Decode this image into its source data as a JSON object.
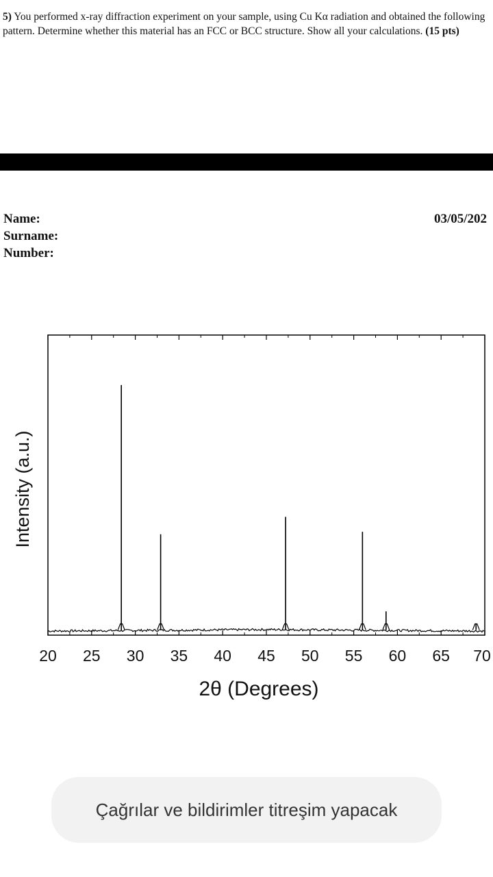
{
  "question": {
    "number": "5)",
    "body": " You performed x-ray diffraction experiment on your sample, using Cu Kα radiation and obtained the following pattern. Determine whether this material has an FCC or BCC structure. Show all your calculations. ",
    "points": "(15 pts)"
  },
  "fields": {
    "name": "Name:",
    "surname": "Surname:",
    "number": "Number:",
    "date": "03/05/202"
  },
  "chart_data": {
    "type": "line",
    "xlabel": "2θ (Degrees)",
    "ylabel": "Intensity (a.u.)",
    "xlim": [
      20,
      70
    ],
    "ylim": [
      0,
      100
    ],
    "xticks": [
      "20",
      "25",
      "30",
      "35",
      "40",
      "45",
      "50",
      "55",
      "60",
      "65",
      "70"
    ],
    "grid": false,
    "peaks": [
      {
        "two_theta": 28.4,
        "intensity": 100
      },
      {
        "two_theta": 32.9,
        "intensity": 40
      },
      {
        "two_theta": 47.2,
        "intensity": 47
      },
      {
        "two_theta": 56.0,
        "intensity": 41
      },
      {
        "two_theta": 58.7,
        "intensity": 9
      },
      {
        "two_theta": 69.0,
        "intensity": 4
      }
    ],
    "baseline": 0.5
  },
  "toast": {
    "message": "Çağrılar ve bildirimler titreşim yapacak"
  }
}
